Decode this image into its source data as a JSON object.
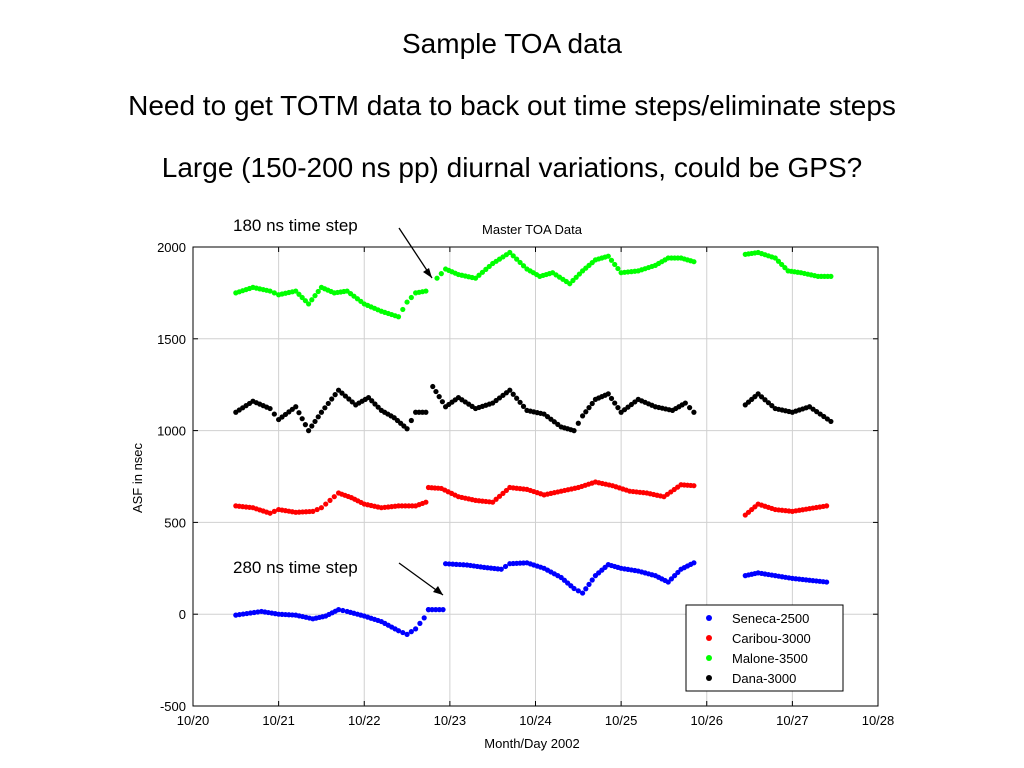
{
  "slide": {
    "title": "Sample TOA data",
    "line2": "Need to get TOTM data to back out time steps/eliminate steps",
    "line3": "Large (150-200 ns pp) diurnal variations, could be GPS?"
  },
  "annotations": {
    "step1": "180 ns time step",
    "step2": "280 ns time step"
  },
  "chart_data": {
    "type": "scatter",
    "title": "Master TOA Data",
    "xlabel": "Month/Day 2002",
    "ylabel": "ASF in nsec",
    "xlim": [
      20,
      28
    ],
    "ylim": [
      -500,
      2000
    ],
    "x_ticks": [
      20,
      21,
      22,
      23,
      24,
      25,
      26,
      27,
      28
    ],
    "x_tick_labels": [
      "10/20",
      "10/21",
      "10/22",
      "10/23",
      "10/24",
      "10/25",
      "10/26",
      "10/27",
      "10/28"
    ],
    "y_ticks": [
      -500,
      0,
      500,
      1000,
      1500,
      2000
    ],
    "y_tick_labels": [
      "-500",
      "0",
      "500",
      "1000",
      "1500",
      "2000"
    ],
    "grid": true,
    "legend_position": "lower-right",
    "x_units": "day of October 2002",
    "series": [
      {
        "name": "Seneca-2500",
        "color": "#0000ff",
        "key": "seneca"
      },
      {
        "name": "Caribou-3000",
        "color": "#ff0000",
        "key": "caribou"
      },
      {
        "name": "Malone-3500",
        "color": "#00ff00",
        "key": "malone"
      },
      {
        "name": "Dana-3000",
        "color": "#000000",
        "key": "dana"
      }
    ],
    "segments": {
      "seneca": [
        {
          "x": [
            20.5,
            20.8,
            21.0,
            21.2,
            21.4,
            21.55,
            21.7,
            21.8,
            22.0,
            22.2,
            22.4,
            22.5,
            22.6,
            22.7,
            22.75
          ],
          "y": [
            -5,
            15,
            0,
            -5,
            -25,
            -10,
            25,
            15,
            -10,
            -40,
            -90,
            -110,
            -80,
            -20,
            25
          ]
        },
        {
          "x": [
            22.75,
            22.92
          ],
          "y": [
            25,
            25
          ]
        },
        {
          "x": [
            22.95,
            23.2,
            23.4,
            23.6,
            23.7,
            23.9,
            24.1,
            24.3,
            24.45,
            24.55,
            24.7,
            24.85,
            25.0,
            25.2,
            25.4,
            25.55,
            25.7,
            25.85
          ],
          "y": [
            275,
            268,
            255,
            245,
            275,
            280,
            250,
            200,
            140,
            115,
            210,
            270,
            250,
            235,
            210,
            175,
            245,
            280
          ]
        },
        {
          "x": [
            26.45,
            26.6,
            26.8,
            27.0,
            27.2,
            27.4
          ],
          "y": [
            210,
            225,
            210,
            195,
            185,
            175
          ]
        }
      ],
      "caribou": [
        {
          "x": [
            20.5,
            20.7,
            20.9,
            21.0,
            21.2,
            21.4,
            21.5,
            21.6,
            21.7,
            21.85,
            22.0,
            22.2,
            22.4,
            22.6,
            22.72
          ],
          "y": [
            590,
            580,
            550,
            570,
            555,
            560,
            580,
            620,
            660,
            635,
            600,
            580,
            590,
            590,
            610
          ]
        },
        {
          "x": [
            22.75,
            22.9,
            23.1,
            23.3,
            23.5,
            23.7,
            23.9,
            24.1,
            24.3,
            24.5,
            24.7,
            24.9,
            25.1,
            25.3,
            25.5,
            25.7,
            25.85
          ],
          "y": [
            690,
            685,
            640,
            620,
            610,
            690,
            680,
            650,
            670,
            690,
            720,
            700,
            670,
            660,
            640,
            705,
            700
          ]
        },
        {
          "x": [
            26.45,
            26.6,
            26.8,
            27.0,
            27.2,
            27.4
          ],
          "y": [
            540,
            600,
            570,
            560,
            575,
            590
          ]
        }
      ],
      "malone": [
        {
          "x": [
            20.5,
            20.7,
            20.9,
            21.0,
            21.2,
            21.35,
            21.5,
            21.65,
            21.8,
            22.0,
            22.2,
            22.4,
            22.5,
            22.6,
            22.72
          ],
          "y": [
            1750,
            1780,
            1760,
            1740,
            1760,
            1690,
            1780,
            1750,
            1760,
            1690,
            1650,
            1620,
            1700,
            1750,
            1760
          ]
        },
        {
          "x": [
            22.85,
            22.95,
            23.1,
            23.3,
            23.5,
            23.7,
            23.9,
            24.05,
            24.2,
            24.4,
            24.55,
            24.7,
            24.85,
            25.0,
            25.2,
            25.4,
            25.55,
            25.7,
            25.85
          ],
          "y": [
            1830,
            1880,
            1850,
            1830,
            1910,
            1970,
            1880,
            1840,
            1860,
            1800,
            1870,
            1930,
            1950,
            1860,
            1870,
            1900,
            1940,
            1940,
            1920
          ]
        },
        {
          "x": [
            26.45,
            26.6,
            26.8,
            26.95,
            27.1,
            27.3,
            27.45
          ],
          "y": [
            1960,
            1970,
            1940,
            1870,
            1860,
            1840,
            1840
          ]
        }
      ],
      "dana": [
        {
          "x": [
            20.5,
            20.7,
            20.9,
            21.0,
            21.2,
            21.35,
            21.5,
            21.7,
            21.9,
            22.05,
            22.2,
            22.35,
            22.5,
            22.6,
            22.72
          ],
          "y": [
            1100,
            1160,
            1120,
            1060,
            1130,
            1000,
            1100,
            1220,
            1140,
            1180,
            1110,
            1070,
            1010,
            1100,
            1100
          ]
        },
        {
          "x": [
            22.8,
            22.95,
            23.1,
            23.3,
            23.5,
            23.7,
            23.9,
            24.1,
            24.3,
            24.45,
            24.55,
            24.7,
            24.85,
            25.0,
            25.2,
            25.4,
            25.6,
            25.75,
            25.85
          ],
          "y": [
            1240,
            1130,
            1180,
            1120,
            1150,
            1220,
            1110,
            1090,
            1020,
            1000,
            1080,
            1170,
            1200,
            1100,
            1170,
            1130,
            1110,
            1150,
            1100
          ]
        },
        {
          "x": [
            26.45,
            26.6,
            26.8,
            27.0,
            27.2,
            27.45
          ],
          "y": [
            1140,
            1200,
            1120,
            1100,
            1130,
            1050
          ]
        }
      ]
    }
  }
}
